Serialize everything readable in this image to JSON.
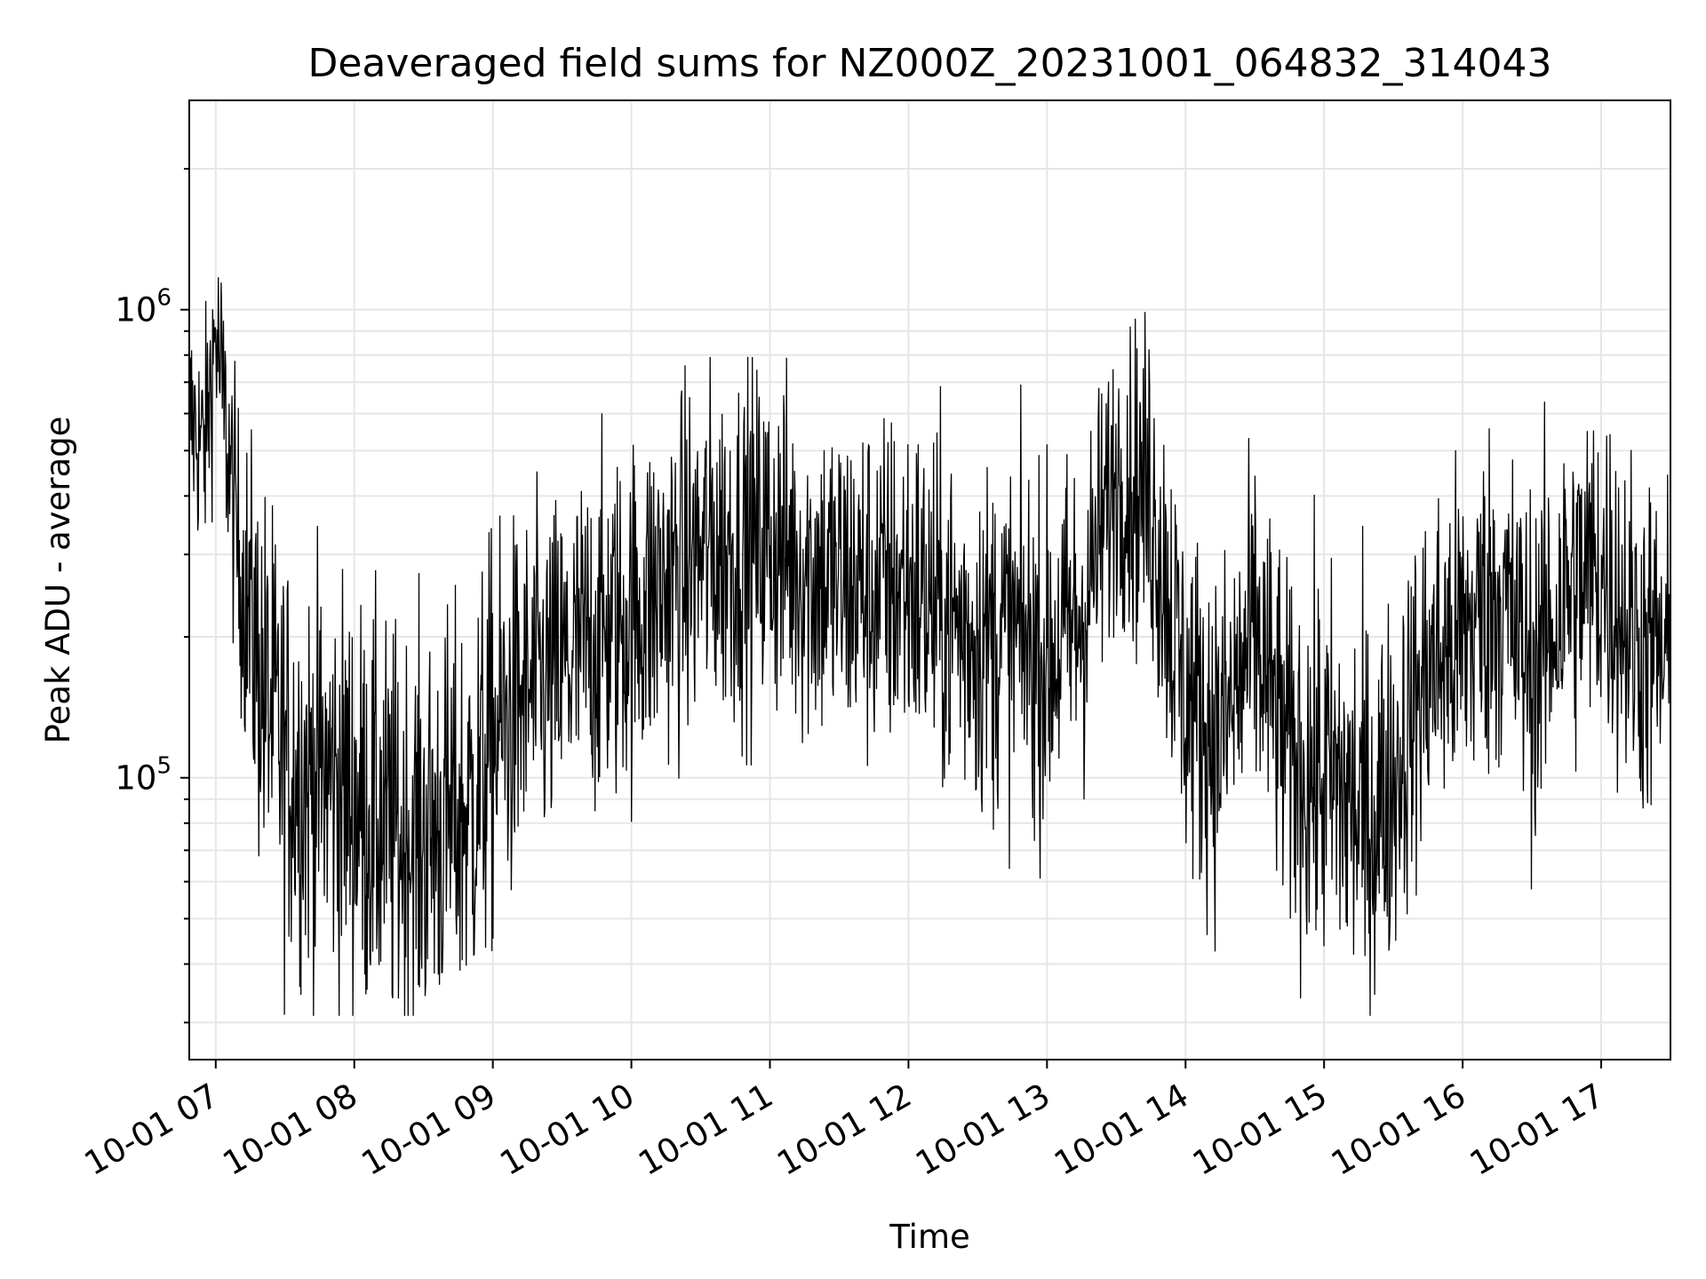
{
  "chart_data": {
    "type": "line",
    "title": "Deaveraged field sums for NZ000Z_20231001_064832_314043",
    "xlabel": "Time",
    "ylabel": "Peak ADU - average",
    "yscale": "log",
    "grid": "major and minor",
    "line_color": "#000000",
    "xlim": [
      "2023-10-01 06:48:32",
      "2023-10-01 17:30:00"
    ],
    "ylim": [
      25000,
      2800000
    ],
    "x_ticks": [
      "10-01 07",
      "10-01 08",
      "10-01 09",
      "10-01 10",
      "10-01 11",
      "10-01 12",
      "10-01 13",
      "10-01 14",
      "10-01 15",
      "10-01 16",
      "10-01 17"
    ],
    "y_ticks": [
      {
        "value": 100000,
        "base": "10",
        "exp": "5"
      },
      {
        "value": 1000000,
        "base": "10",
        "exp": "6"
      }
    ],
    "series": [
      {
        "values_note_hidden": "",
        "x": [
          "06:48",
          "06:55",
          "07:00",
          "07:10",
          "07:20",
          "07:30",
          "07:40",
          "07:50",
          "08:00",
          "08:10",
          "08:20",
          "08:30",
          "08:40",
          "08:50",
          "09:00",
          "09:15",
          "09:30",
          "09:45",
          "10:00",
          "10:15",
          "10:30",
          "10:45",
          "11:00",
          "11:15",
          "11:30",
          "11:45",
          "12:00",
          "12:15",
          "12:30",
          "12:45",
          "13:00",
          "13:15",
          "13:30",
          "13:45",
          "14:00",
          "14:15",
          "14:30",
          "14:45",
          "15:00",
          "15:10",
          "15:20",
          "15:30",
          "15:45",
          "16:00",
          "16:15",
          "16:30",
          "16:45",
          "17:00",
          "17:15",
          "17:30"
        ],
        "y_median": [
          600000,
          500000,
          900000,
          300000,
          160000,
          110000,
          100000,
          100000,
          90000,
          80000,
          75000,
          75000,
          80000,
          85000,
          120000,
          150000,
          170000,
          200000,
          220000,
          260000,
          300000,
          310000,
          320000,
          280000,
          260000,
          250000,
          260000,
          220000,
          200000,
          200000,
          180000,
          220000,
          450000,
          400000,
          150000,
          120000,
          200000,
          110000,
          100000,
          90000,
          80000,
          100000,
          170000,
          200000,
          250000,
          170000,
          250000,
          280000,
          200000,
          170000
        ],
        "y_spread": [
          2.5,
          2.5,
          2.5,
          3,
          5,
          5,
          5,
          5,
          5,
          5,
          5,
          5,
          5,
          5,
          5,
          4,
          4,
          4,
          4,
          4,
          4,
          4,
          4,
          4,
          4,
          4,
          4,
          4,
          4,
          4,
          4,
          4,
          3,
          4,
          4,
          4,
          4,
          4,
          5,
          5,
          5,
          4,
          4,
          4,
          4,
          4,
          4,
          4,
          4,
          4
        ]
      }
    ]
  }
}
